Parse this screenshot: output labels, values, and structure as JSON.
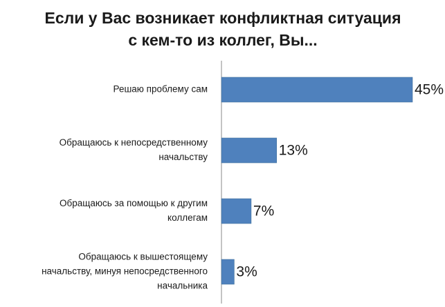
{
  "chart_data": {
    "type": "bar",
    "orientation": "horizontal",
    "title_lines": [
      "Если у Вас возникает конфликтная ситуация",
      "с кем-то из коллег, Вы..."
    ],
    "categories": [
      [
        "Решаю проблему сам"
      ],
      [
        "Обращаюсь к непосредственному",
        "начальству"
      ],
      [
        "Обращаюсь за помощью к другим",
        "коллегам"
      ],
      [
        "Обращаюсь к вышестоящему",
        "начальству, минуя непосредственного",
        "начальника"
      ]
    ],
    "values": [
      45,
      13,
      7,
      3
    ],
    "value_labels": [
      "45%",
      "13%",
      "7%",
      "3%"
    ],
    "xlim": [
      0,
      45
    ],
    "color": "#4f81bd",
    "grid": false,
    "legend": "none"
  }
}
